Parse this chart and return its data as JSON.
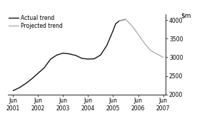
{
  "actual_x": [
    2001.5,
    2001.75,
    2002.0,
    2002.25,
    2002.5,
    2002.75,
    2003.0,
    2003.25,
    2003.5,
    2003.75,
    2004.0,
    2004.25,
    2004.5,
    2004.75,
    2005.0,
    2005.25,
    2005.5,
    2005.6,
    2005.75,
    2006.0
  ],
  "actual_y": [
    2100,
    2180,
    2290,
    2420,
    2570,
    2720,
    2950,
    3060,
    3110,
    3090,
    3050,
    2970,
    2950,
    2960,
    3060,
    3320,
    3720,
    3900,
    3980,
    4020
  ],
  "projected_x": [
    2005.75,
    2006.0,
    2006.25,
    2006.5,
    2006.75,
    2007.0,
    2007.5
  ],
  "projected_y": [
    3980,
    4020,
    3850,
    3620,
    3380,
    3180,
    3000
  ],
  "actual_color": "#111111",
  "projected_color": "#b0b0b0",
  "xlim": [
    2001.3,
    2007.6
  ],
  "ylim": [
    2000,
    4150
  ],
  "yticks": [
    2000,
    2500,
    3000,
    3500,
    4000
  ],
  "ytick_labels": [
    "2000",
    "2500",
    "3000",
    "3500",
    "4000"
  ],
  "xtick_positions": [
    2001.5,
    2002.5,
    2003.5,
    2004.5,
    2005.5,
    2006.5,
    2007.5
  ],
  "xtick_line1": [
    "Jun",
    "Jun",
    "Jun",
    "Jun",
    "Jun",
    "Jun",
    "Jun"
  ],
  "xtick_line2": [
    "2001",
    "2002",
    "2003",
    "2004",
    "2005",
    "2006",
    "2007"
  ],
  "legend_actual": "Actual trend",
  "legend_projected": "Projected trend",
  "linewidth": 1.0,
  "legend_fontsize": 5.5,
  "tick_fontsize": 5.5,
  "ylabel_fontsize": 6.5
}
